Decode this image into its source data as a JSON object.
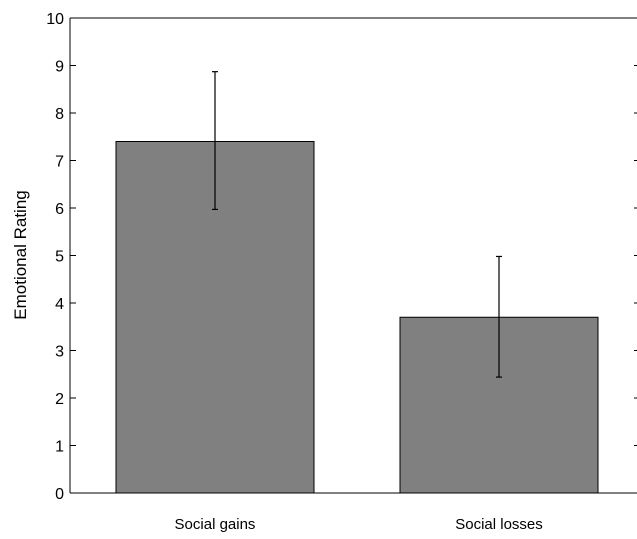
{
  "chart_data": {
    "type": "bar",
    "categories": [
      "Social gains",
      "Social losses"
    ],
    "values": [
      7.4,
      3.7
    ],
    "errors": [
      {
        "low": 5.97,
        "high": 8.87
      },
      {
        "low": 2.44,
        "high": 4.98
      }
    ],
    "title": "",
    "xlabel": "",
    "ylabel": "Emotional Rating",
    "ylim": [
      0,
      10
    ],
    "yticks": [
      "0",
      "1",
      "2",
      "3",
      "4",
      "5",
      "6",
      "7",
      "8",
      "9",
      "10"
    ],
    "grid": false,
    "legend": "none",
    "bar_color": "#808080",
    "edge_color": "#000000"
  }
}
